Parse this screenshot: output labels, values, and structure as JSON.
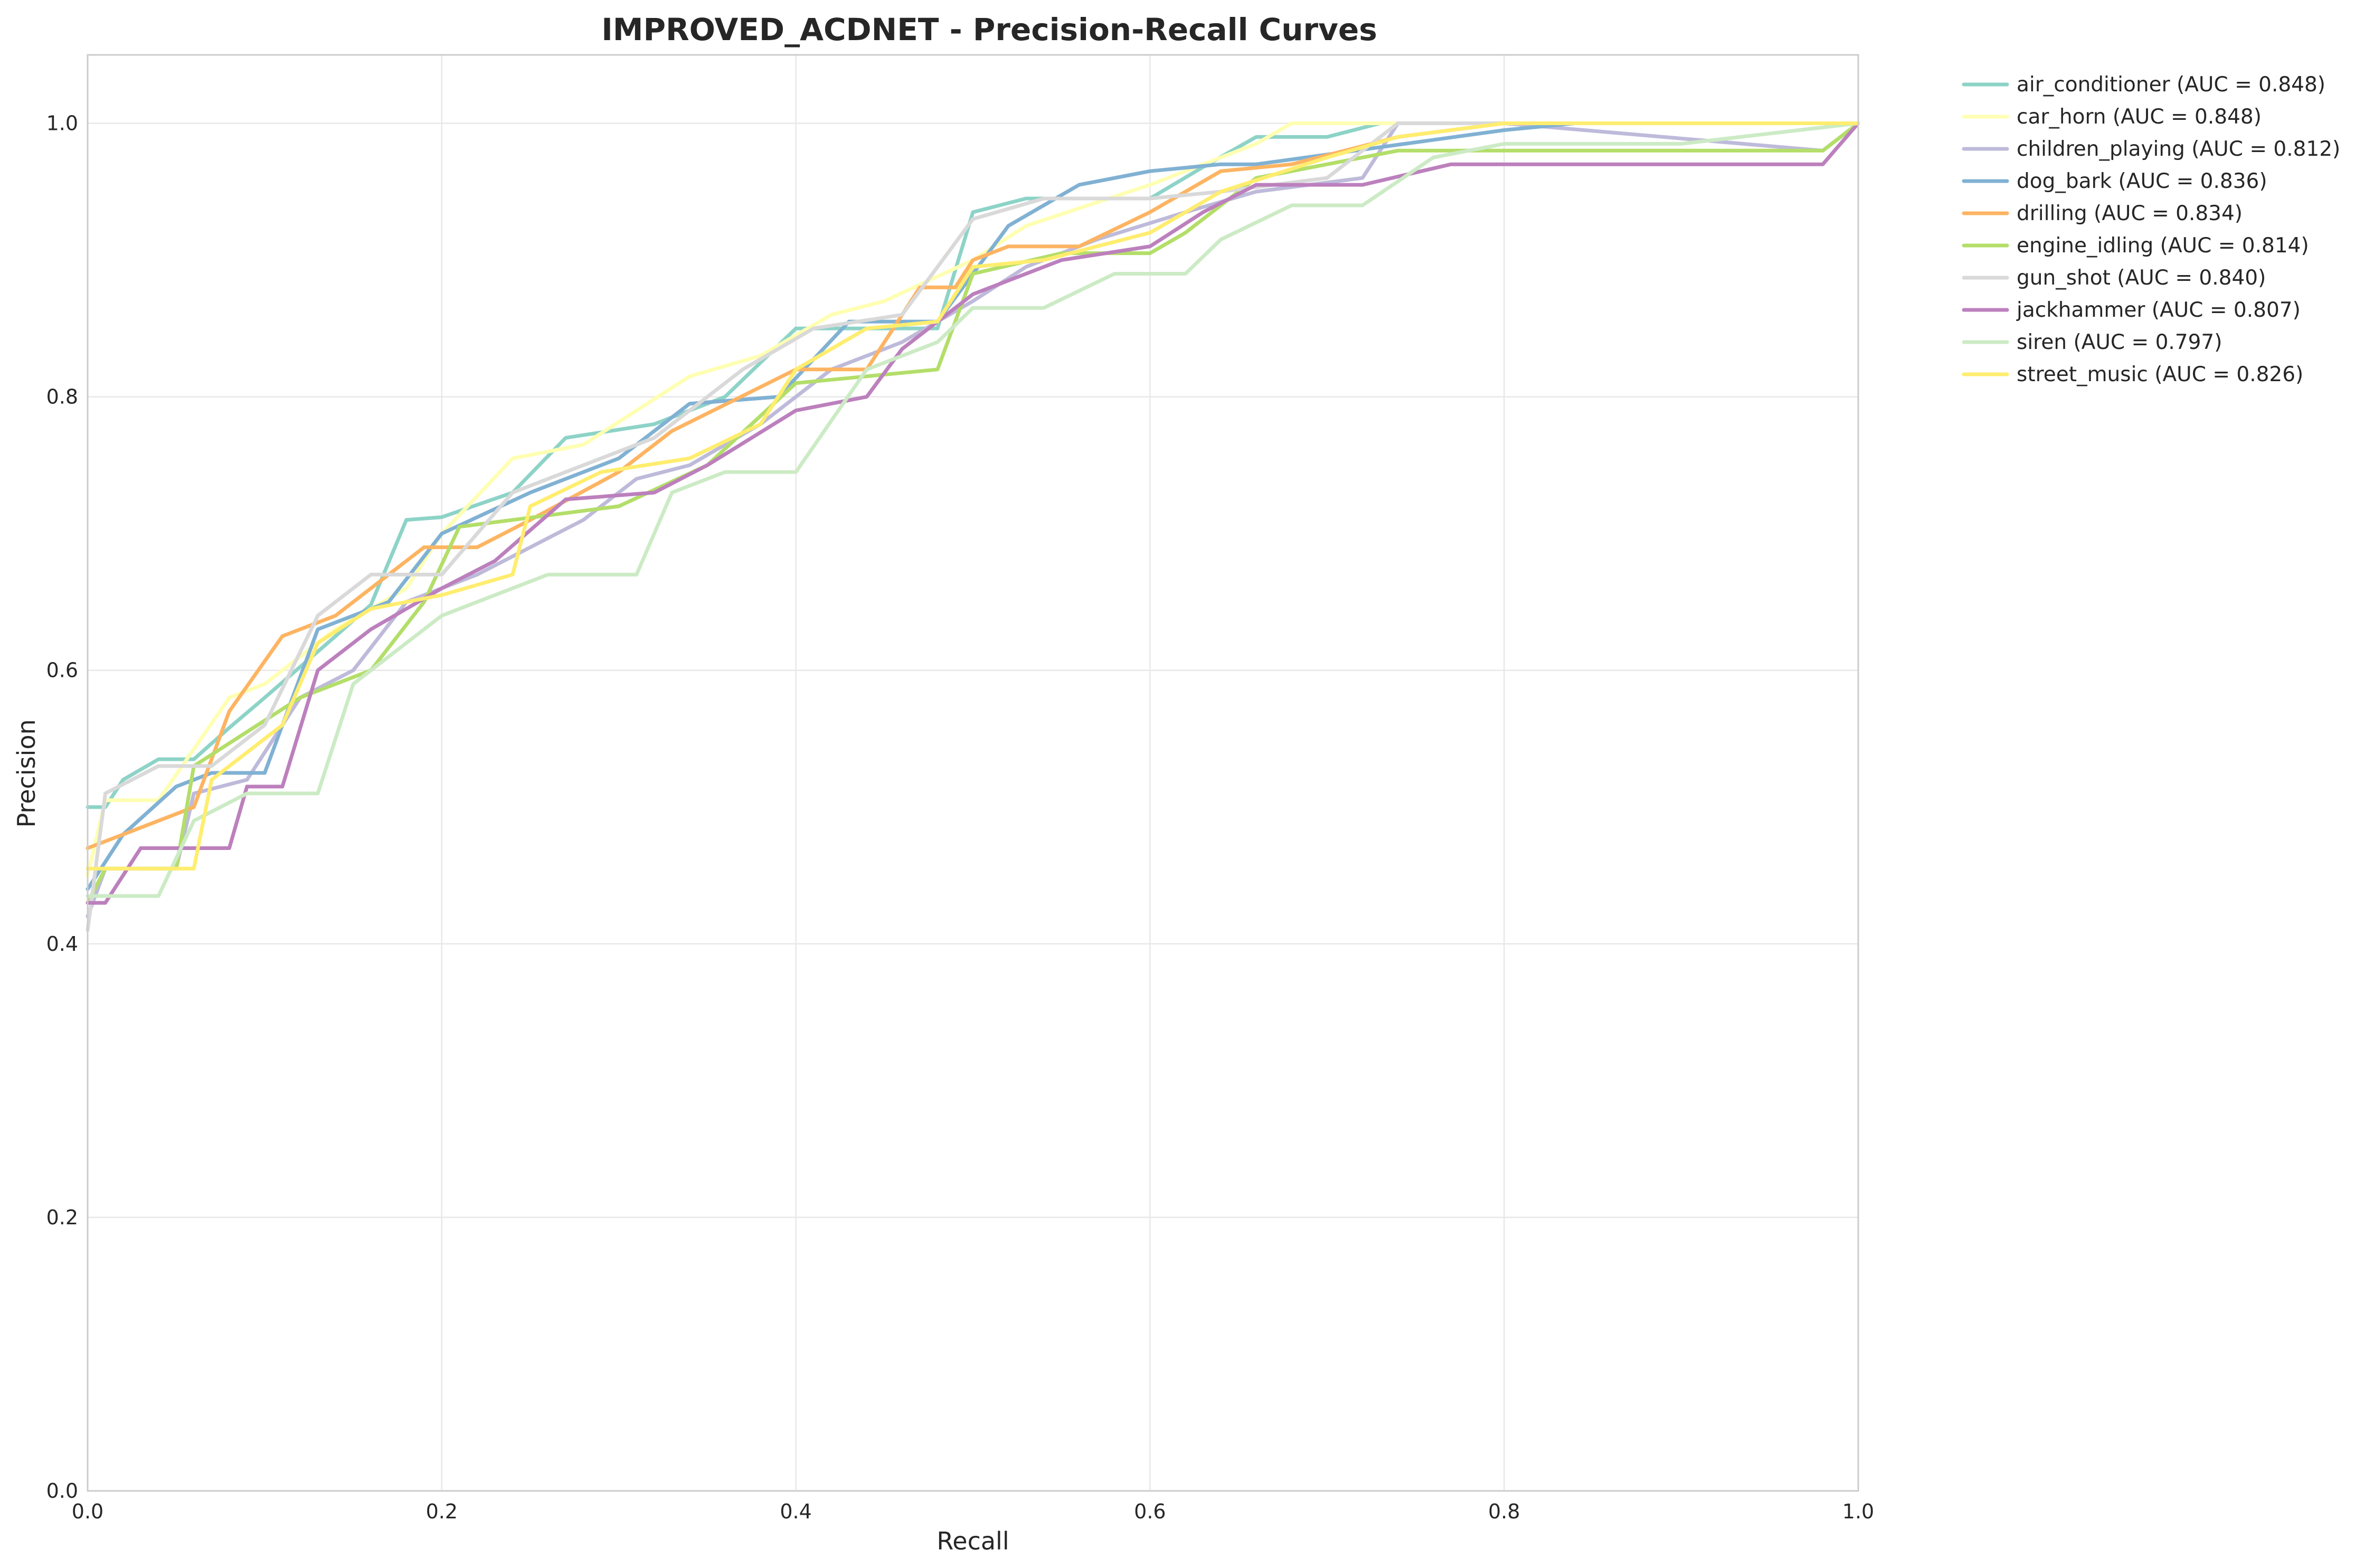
{
  "chart_data": {
    "type": "line",
    "title": "IMPROVED_ACDNET - Precision-Recall Curves",
    "xlabel": "Recall",
    "ylabel": "Precision",
    "xlim": [
      0,
      1
    ],
    "ylim": [
      0,
      1.05
    ],
    "xticks": [
      0.0,
      0.2,
      0.4,
      0.6,
      0.8,
      1.0
    ],
    "yticks": [
      0.0,
      0.2,
      0.4,
      0.6,
      0.8,
      1.0
    ],
    "xtick_labels": [
      "0.0",
      "0.2",
      "0.4",
      "0.6",
      "0.8",
      "1.0"
    ],
    "ytick_labels": [
      "0.0",
      "0.2",
      "0.4",
      "0.6",
      "0.8",
      "1.0"
    ],
    "grid": true,
    "legend_position": "outside-top-right",
    "series": [
      {
        "name": "air_conditioner (AUC = 0.848)",
        "color": "#8dd3c7",
        "x": [
          0,
          0.01,
          0.02,
          0.04,
          0.06,
          0.08,
          0.1,
          0.14,
          0.16,
          0.18,
          0.2,
          0.24,
          0.27,
          0.32,
          0.36,
          0.4,
          0.43,
          0.48,
          0.5,
          0.53,
          0.56,
          0.6,
          0.63,
          0.66,
          0.7,
          0.73,
          0.8,
          1.0
        ],
        "y": [
          0.5,
          0.5,
          0.52,
          0.535,
          0.535,
          0.558,
          0.58,
          0.625,
          0.648,
          0.71,
          0.712,
          0.73,
          0.77,
          0.78,
          0.8,
          0.85,
          0.85,
          0.85,
          0.935,
          0.945,
          0.945,
          0.945,
          0.968,
          0.99,
          0.99,
          1.0,
          1.0,
          1.0
        ]
      },
      {
        "name": "car_horn (AUC = 0.848)",
        "color": "#ffffb3",
        "x": [
          0,
          0.01,
          0.04,
          0.08,
          0.1,
          0.14,
          0.18,
          0.2,
          0.24,
          0.28,
          0.31,
          0.34,
          0.38,
          0.42,
          0.45,
          0.5,
          0.53,
          0.6,
          0.66,
          0.68,
          0.8,
          1.0
        ],
        "y": [
          0.45,
          0.505,
          0.505,
          0.58,
          0.59,
          0.63,
          0.66,
          0.7,
          0.755,
          0.765,
          0.79,
          0.815,
          0.83,
          0.86,
          0.87,
          0.9,
          0.925,
          0.955,
          0.985,
          1.0,
          1.0,
          1.0
        ]
      },
      {
        "name": "children_playing (AUC = 0.812)",
        "color": "#bebada",
        "x": [
          0,
          0.01,
          0.05,
          0.06,
          0.09,
          0.12,
          0.15,
          0.18,
          0.22,
          0.28,
          0.31,
          0.34,
          0.38,
          0.42,
          0.46,
          0.5,
          0.53,
          0.57,
          0.62,
          0.66,
          0.72,
          0.74,
          0.8,
          0.98,
          1.0
        ],
        "y": [
          0.42,
          0.455,
          0.455,
          0.51,
          0.52,
          0.58,
          0.6,
          0.65,
          0.67,
          0.71,
          0.74,
          0.75,
          0.78,
          0.82,
          0.84,
          0.87,
          0.895,
          0.915,
          0.935,
          0.95,
          0.96,
          1.0,
          1.0,
          0.98,
          1.0
        ]
      },
      {
        "name": "dog_bark (AUC = 0.836)",
        "color": "#80b1d3",
        "x": [
          0,
          0.02,
          0.05,
          0.07,
          0.1,
          0.13,
          0.17,
          0.2,
          0.25,
          0.3,
          0.34,
          0.39,
          0.43,
          0.48,
          0.52,
          0.56,
          0.6,
          0.64,
          0.66,
          0.8,
          0.84,
          1.0
        ],
        "y": [
          0.44,
          0.48,
          0.515,
          0.525,
          0.525,
          0.63,
          0.65,
          0.7,
          0.73,
          0.755,
          0.795,
          0.8,
          0.855,
          0.855,
          0.925,
          0.955,
          0.965,
          0.97,
          0.97,
          0.995,
          1.0,
          1.0
        ]
      },
      {
        "name": "drilling (AUC = 0.834)",
        "color": "#fdb462",
        "x": [
          0,
          0.03,
          0.06,
          0.08,
          0.11,
          0.14,
          0.19,
          0.22,
          0.25,
          0.3,
          0.33,
          0.4,
          0.44,
          0.47,
          0.49,
          0.5,
          0.52,
          0.56,
          0.6,
          0.64,
          0.68,
          0.74,
          0.8,
          1.0
        ],
        "y": [
          0.47,
          0.485,
          0.5,
          0.57,
          0.625,
          0.64,
          0.69,
          0.69,
          0.71,
          0.745,
          0.775,
          0.82,
          0.82,
          0.88,
          0.88,
          0.9,
          0.91,
          0.91,
          0.935,
          0.965,
          0.97,
          0.99,
          1.0,
          1.0
        ]
      },
      {
        "name": "engine_idling (AUC = 0.814)",
        "color": "#b3de69",
        "x": [
          0,
          0.01,
          0.05,
          0.06,
          0.12,
          0.16,
          0.19,
          0.21,
          0.24,
          0.3,
          0.35,
          0.4,
          0.44,
          0.48,
          0.5,
          0.55,
          0.6,
          0.62,
          0.66,
          0.74,
          0.8,
          0.98,
          1.0
        ],
        "y": [
          0.43,
          0.455,
          0.455,
          0.53,
          0.58,
          0.6,
          0.65,
          0.705,
          0.71,
          0.72,
          0.75,
          0.81,
          0.815,
          0.82,
          0.89,
          0.905,
          0.905,
          0.92,
          0.96,
          0.98,
          0.98,
          0.98,
          1.0
        ]
      },
      {
        "name": "gun_shot (AUC = 0.840)",
        "color": "#d9d9d9",
        "x": [
          0,
          0.01,
          0.04,
          0.07,
          0.1,
          0.13,
          0.16,
          0.2,
          0.24,
          0.28,
          0.32,
          0.37,
          0.41,
          0.46,
          0.5,
          0.54,
          0.6,
          0.64,
          0.7,
          0.74,
          0.8,
          1.0
        ],
        "y": [
          0.41,
          0.51,
          0.53,
          0.53,
          0.56,
          0.64,
          0.67,
          0.67,
          0.73,
          0.75,
          0.77,
          0.82,
          0.85,
          0.86,
          0.93,
          0.945,
          0.945,
          0.95,
          0.96,
          1.0,
          1.0,
          1.0
        ]
      },
      {
        "name": "jackhammer (AUC = 0.807)",
        "color": "#bc80bd",
        "x": [
          0,
          0.01,
          0.03,
          0.06,
          0.08,
          0.09,
          0.11,
          0.13,
          0.16,
          0.2,
          0.23,
          0.27,
          0.32,
          0.35,
          0.4,
          0.44,
          0.46,
          0.5,
          0.55,
          0.6,
          0.63,
          0.66,
          0.72,
          0.77,
          0.8,
          0.98,
          1.0
        ],
        "y": [
          0.43,
          0.43,
          0.47,
          0.47,
          0.47,
          0.515,
          0.515,
          0.6,
          0.63,
          0.66,
          0.68,
          0.725,
          0.73,
          0.75,
          0.79,
          0.8,
          0.835,
          0.875,
          0.9,
          0.91,
          0.935,
          0.955,
          0.955,
          0.97,
          0.97,
          0.97,
          1.0
        ]
      },
      {
        "name": "siren (AUC = 0.797)",
        "color": "#ccebc5",
        "x": [
          0,
          0.04,
          0.06,
          0.09,
          0.13,
          0.15,
          0.2,
          0.23,
          0.26,
          0.31,
          0.33,
          0.36,
          0.4,
          0.44,
          0.48,
          0.5,
          0.54,
          0.58,
          0.62,
          0.64,
          0.68,
          0.72,
          0.76,
          0.8,
          0.9,
          1.0
        ],
        "y": [
          0.435,
          0.435,
          0.49,
          0.51,
          0.51,
          0.59,
          0.64,
          0.655,
          0.67,
          0.67,
          0.73,
          0.745,
          0.745,
          0.82,
          0.84,
          0.865,
          0.865,
          0.89,
          0.89,
          0.915,
          0.94,
          0.94,
          0.975,
          0.985,
          0.985,
          1.0
        ]
      },
      {
        "name": "street_music (AUC = 0.826)",
        "color": "#ffed6f",
        "x": [
          0,
          0.06,
          0.07,
          0.11,
          0.13,
          0.16,
          0.2,
          0.24,
          0.25,
          0.29,
          0.34,
          0.38,
          0.4,
          0.44,
          0.48,
          0.5,
          0.54,
          0.6,
          0.64,
          0.7,
          0.74,
          0.8,
          1.0
        ],
        "y": [
          0.455,
          0.455,
          0.52,
          0.56,
          0.62,
          0.645,
          0.655,
          0.67,
          0.72,
          0.745,
          0.755,
          0.78,
          0.82,
          0.85,
          0.855,
          0.895,
          0.9,
          0.92,
          0.95,
          0.975,
          0.99,
          1.0,
          1.0
        ]
      }
    ]
  }
}
